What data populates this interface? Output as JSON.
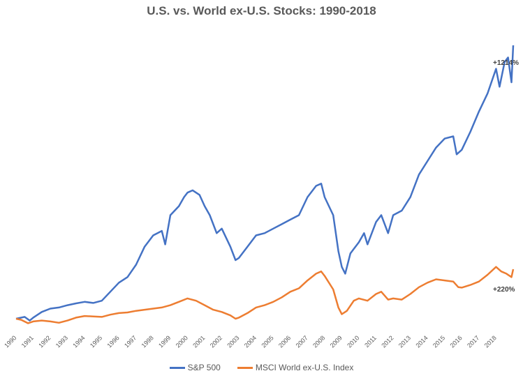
{
  "chart_data": {
    "type": "line",
    "title": "U.S. vs. World ex-U.S. Stocks: 1990-2018",
    "xlabel": "",
    "ylabel": "",
    "grid": false,
    "legend_position": "bottom",
    "x_ticks": [
      "1990",
      "1991",
      "1992",
      "1993",
      "1994",
      "1995",
      "1996",
      "1997",
      "1998",
      "1999",
      "2000",
      "2001",
      "2002",
      "2003",
      "2004",
      "2005",
      "2006",
      "2007",
      "2008",
      "2009",
      "2010",
      "2011",
      "2012",
      "2013",
      "2014",
      "2015",
      "2016",
      "2017",
      "2018"
    ],
    "series": [
      {
        "name": "S&P 500",
        "color": "#4472C4",
        "end_label": "+1214%",
        "points": [
          [
            1990.0,
            100
          ],
          [
            1990.5,
            108
          ],
          [
            1990.8,
            92
          ],
          [
            1991.0,
            105
          ],
          [
            1991.5,
            130
          ],
          [
            1992.0,
            145
          ],
          [
            1992.5,
            150
          ],
          [
            1993.0,
            160
          ],
          [
            1993.5,
            168
          ],
          [
            1994.0,
            175
          ],
          [
            1994.5,
            170
          ],
          [
            1995.0,
            180
          ],
          [
            1995.5,
            220
          ],
          [
            1996.0,
            260
          ],
          [
            1996.5,
            285
          ],
          [
            1997.0,
            340
          ],
          [
            1997.5,
            420
          ],
          [
            1998.0,
            470
          ],
          [
            1998.5,
            490
          ],
          [
            1998.7,
            430
          ],
          [
            1999.0,
            560
          ],
          [
            1999.5,
            600
          ],
          [
            1999.8,
            640
          ],
          [
            2000.0,
            660
          ],
          [
            2000.3,
            670
          ],
          [
            2000.7,
            650
          ],
          [
            2001.0,
            600
          ],
          [
            2001.3,
            560
          ],
          [
            2001.7,
            480
          ],
          [
            2002.0,
            500
          ],
          [
            2002.5,
            420
          ],
          [
            2002.8,
            360
          ],
          [
            2003.0,
            370
          ],
          [
            2003.5,
            420
          ],
          [
            2004.0,
            470
          ],
          [
            2004.5,
            480
          ],
          [
            2005.0,
            500
          ],
          [
            2005.5,
            520
          ],
          [
            2006.0,
            540
          ],
          [
            2006.5,
            560
          ],
          [
            2007.0,
            640
          ],
          [
            2007.5,
            690
          ],
          [
            2007.8,
            700
          ],
          [
            2008.0,
            640
          ],
          [
            2008.5,
            560
          ],
          [
            2008.8,
            400
          ],
          [
            2009.0,
            330
          ],
          [
            2009.2,
            300
          ],
          [
            2009.5,
            390
          ],
          [
            2010.0,
            440
          ],
          [
            2010.3,
            480
          ],
          [
            2010.5,
            430
          ],
          [
            2011.0,
            530
          ],
          [
            2011.3,
            560
          ],
          [
            2011.7,
            480
          ],
          [
            2012.0,
            560
          ],
          [
            2012.5,
            580
          ],
          [
            2013.0,
            640
          ],
          [
            2013.5,
            740
          ],
          [
            2014.0,
            800
          ],
          [
            2014.5,
            860
          ],
          [
            2015.0,
            900
          ],
          [
            2015.5,
            910
          ],
          [
            2015.7,
            830
          ],
          [
            2016.0,
            850
          ],
          [
            2016.5,
            930
          ],
          [
            2017.0,
            1020
          ],
          [
            2017.5,
            1100
          ],
          [
            2018.0,
            1210
          ],
          [
            2018.2,
            1130
          ],
          [
            2018.5,
            1240
          ],
          [
            2018.7,
            1260
          ],
          [
            2018.9,
            1150
          ],
          [
            2019.0,
            1314
          ]
        ]
      },
      {
        "name": "MSCI World ex-U.S. Index",
        "color": "#ED7D31",
        "end_label": "+220%",
        "points": [
          [
            1990.0,
            100
          ],
          [
            1990.3,
            95
          ],
          [
            1990.7,
            80
          ],
          [
            1991.0,
            88
          ],
          [
            1991.5,
            92
          ],
          [
            1992.0,
            88
          ],
          [
            1992.5,
            82
          ],
          [
            1993.0,
            92
          ],
          [
            1993.5,
            105
          ],
          [
            1994.0,
            112
          ],
          [
            1994.5,
            110
          ],
          [
            1995.0,
            108
          ],
          [
            1995.5,
            118
          ],
          [
            1996.0,
            125
          ],
          [
            1996.5,
            128
          ],
          [
            1997.0,
            135
          ],
          [
            1997.5,
            140
          ],
          [
            1998.0,
            145
          ],
          [
            1998.5,
            150
          ],
          [
            1999.0,
            160
          ],
          [
            1999.5,
            175
          ],
          [
            2000.0,
            190
          ],
          [
            2000.5,
            180
          ],
          [
            2001.0,
            160
          ],
          [
            2001.5,
            140
          ],
          [
            2002.0,
            130
          ],
          [
            2002.5,
            115
          ],
          [
            2002.8,
            100
          ],
          [
            2003.0,
            105
          ],
          [
            2003.5,
            125
          ],
          [
            2004.0,
            150
          ],
          [
            2004.5,
            160
          ],
          [
            2005.0,
            175
          ],
          [
            2005.5,
            195
          ],
          [
            2006.0,
            220
          ],
          [
            2006.5,
            235
          ],
          [
            2007.0,
            270
          ],
          [
            2007.5,
            300
          ],
          [
            2007.8,
            310
          ],
          [
            2008.0,
            290
          ],
          [
            2008.5,
            230
          ],
          [
            2008.8,
            150
          ],
          [
            2009.0,
            120
          ],
          [
            2009.3,
            135
          ],
          [
            2009.7,
            180
          ],
          [
            2010.0,
            190
          ],
          [
            2010.5,
            180
          ],
          [
            2011.0,
            210
          ],
          [
            2011.3,
            220
          ],
          [
            2011.7,
            185
          ],
          [
            2012.0,
            190
          ],
          [
            2012.5,
            185
          ],
          [
            2013.0,
            210
          ],
          [
            2013.5,
            240
          ],
          [
            2014.0,
            260
          ],
          [
            2014.5,
            275
          ],
          [
            2015.0,
            270
          ],
          [
            2015.5,
            265
          ],
          [
            2015.8,
            240
          ],
          [
            2016.0,
            238
          ],
          [
            2016.5,
            250
          ],
          [
            2017.0,
            265
          ],
          [
            2017.5,
            295
          ],
          [
            2018.0,
            330
          ],
          [
            2018.3,
            310
          ],
          [
            2018.6,
            300
          ],
          [
            2018.9,
            285
          ],
          [
            2019.0,
            320
          ]
        ]
      }
    ]
  }
}
